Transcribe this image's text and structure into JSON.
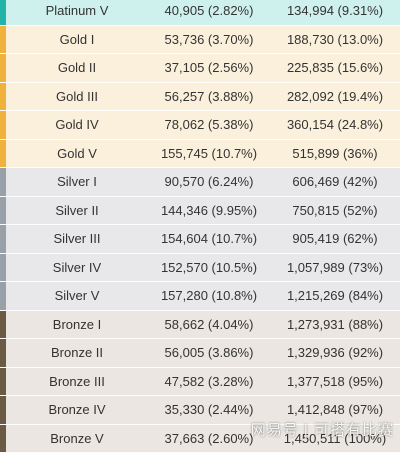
{
  "tiers": {
    "platinum": {
      "row_bg": "#cff1ee",
      "strip": "#22b4a8"
    },
    "gold": {
      "row_bg": "#fbf0dc",
      "strip": "#f0b23c"
    },
    "silver": {
      "row_bg": "#e8e8ea",
      "strip": "#9aa0a8"
    },
    "bronze": {
      "row_bg": "#ebe6e1",
      "strip": "#6b5b45"
    }
  },
  "rows": [
    {
      "tier": "platinum",
      "rank": "Platinum V",
      "count": "40,905 (2.82%)",
      "cumulative": "134,994 (9.31%)"
    },
    {
      "tier": "gold",
      "rank": "Gold I",
      "count": "53,736 (3.70%)",
      "cumulative": "188,730 (13.0%)"
    },
    {
      "tier": "gold",
      "rank": "Gold II",
      "count": "37,105 (2.56%)",
      "cumulative": "225,835 (15.6%)"
    },
    {
      "tier": "gold",
      "rank": "Gold III",
      "count": "56,257 (3.88%)",
      "cumulative": "282,092 (19.4%)"
    },
    {
      "tier": "gold",
      "rank": "Gold IV",
      "count": "78,062 (5.38%)",
      "cumulative": "360,154 (24.8%)"
    },
    {
      "tier": "gold",
      "rank": "Gold V",
      "count": "155,745 (10.7%)",
      "cumulative": "515,899 (36%)"
    },
    {
      "tier": "silver",
      "rank": "Silver I",
      "count": "90,570 (6.24%)",
      "cumulative": "606,469 (42%)"
    },
    {
      "tier": "silver",
      "rank": "Silver II",
      "count": "144,346 (9.95%)",
      "cumulative": "750,815 (52%)"
    },
    {
      "tier": "silver",
      "rank": "Silver III",
      "count": "154,604 (10.7%)",
      "cumulative": "905,419 (62%)"
    },
    {
      "tier": "silver",
      "rank": "Silver IV",
      "count": "152,570 (10.5%)",
      "cumulative": "1,057,989 (73%)"
    },
    {
      "tier": "silver",
      "rank": "Silver V",
      "count": "157,280 (10.8%)",
      "cumulative": "1,215,269 (84%)"
    },
    {
      "tier": "bronze",
      "rank": "Bronze I",
      "count": "58,662 (4.04%)",
      "cumulative": "1,273,931 (88%)"
    },
    {
      "tier": "bronze",
      "rank": "Bronze II",
      "count": "56,005 (3.86%)",
      "cumulative": "1,329,936 (92%)"
    },
    {
      "tier": "bronze",
      "rank": "Bronze III",
      "count": "47,582 (3.28%)",
      "cumulative": "1,377,518 (95%)"
    },
    {
      "tier": "bronze",
      "rank": "Bronze IV",
      "count": "35,330 (2.44%)",
      "cumulative": "1,412,848 (97%)"
    },
    {
      "tier": "bronze",
      "rank": "Bronze V",
      "count": "37,663 (2.60%)",
      "cumulative": "1,450,511 (100%)"
    }
  ],
  "watermark": "网易号 | 可搭有比赛"
}
